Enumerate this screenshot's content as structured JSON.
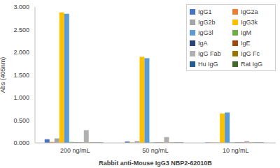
{
  "chart_data": {
    "type": "bar",
    "x_label": "Rabbit anti-Mouse IgG3 NBP2-62010B",
    "y_label": "Abs (405nm)",
    "categories": [
      "200 ng/mL",
      "50 ng/mL",
      "10 ng/mL"
    ],
    "ylim": [
      0,
      3
    ],
    "yticks": [
      {
        "value": 0,
        "label": "0.000"
      },
      {
        "value": 0.5,
        "label": "0.500"
      },
      {
        "value": 1,
        "label": "1.000"
      },
      {
        "value": 1.5,
        "label": "1.500"
      },
      {
        "value": 2,
        "label": "2.000"
      },
      {
        "value": 2.5,
        "label": "2.500"
      },
      {
        "value": 3,
        "label": "3.000"
      }
    ],
    "grid": false,
    "legend": "upper right",
    "series": [
      {
        "name": "IgG1",
        "color": "#4472c4",
        "values": [
          0.08,
          0.03,
          0.01
        ]
      },
      {
        "name": "IgG2a",
        "color": "#ed7d31",
        "values": [
          0.02,
          0.01,
          0.01
        ]
      },
      {
        "name": "IgG2b",
        "color": "#a5a5a5",
        "values": [
          0.1,
          0.04,
          0.01
        ]
      },
      {
        "name": "IgG3k",
        "color": "#ffc000",
        "values": [
          2.88,
          1.9,
          0.65
        ]
      },
      {
        "name": "IgG3l",
        "color": "#5b9bd5",
        "values": [
          2.85,
          1.87,
          0.67
        ]
      },
      {
        "name": "IgM",
        "color": "#70ad47",
        "values": [
          0.02,
          0.01,
          0.01
        ]
      },
      {
        "name": "IgA",
        "color": "#264478",
        "values": [
          0.01,
          0.01,
          0.01
        ]
      },
      {
        "name": "IgE",
        "color": "#9e480e",
        "values": [
          0.01,
          0.01,
          0.01
        ]
      },
      {
        "name": "IgG Fab",
        "color": "#b0b0b0",
        "values": [
          0.28,
          0.13,
          0.04
        ]
      },
      {
        "name": "IgG Fc",
        "color": "#997300",
        "values": [
          0.01,
          0.01,
          0.01
        ]
      },
      {
        "name": "Hu IgG",
        "color": "#255e91",
        "values": [
          0.01,
          0.01,
          0.01
        ]
      },
      {
        "name": "Rat IgG",
        "color": "#43682b",
        "values": [
          0.01,
          0.01,
          0.01
        ]
      }
    ]
  }
}
